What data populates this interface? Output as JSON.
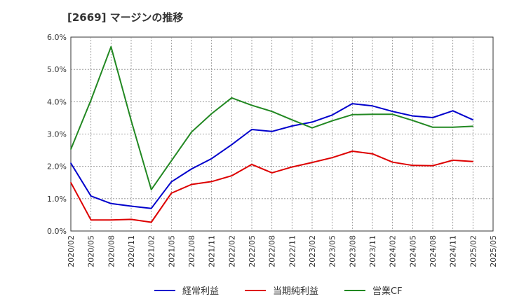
{
  "chart_data": {
    "type": "line",
    "title": "[2669]  マージンの推移",
    "xlabel": "",
    "ylabel": "",
    "ylim": [
      0,
      6
    ],
    "grid": true,
    "legend_position": "bottom",
    "x": [
      "2020/02",
      "2020/05",
      "2020/08",
      "2020/11",
      "2021/02",
      "2021/05",
      "2021/08",
      "2021/11",
      "2022/02",
      "2022/05",
      "2022/08",
      "2022/11",
      "2023/02",
      "2023/05",
      "2023/08",
      "2023/11",
      "2024/02",
      "2024/05",
      "2024/08",
      "2024/11",
      "2025/02",
      "2025/05"
    ],
    "y_ticks": [
      "0.0%",
      "1.0%",
      "2.0%",
      "3.0%",
      "4.0%",
      "5.0%",
      "6.0%"
    ],
    "series": [
      {
        "name": "経常利益",
        "color": "#0000cc",
        "values": [
          2.1,
          1.08,
          0.85,
          0.77,
          0.7,
          1.52,
          1.92,
          2.24,
          2.67,
          3.14,
          3.08,
          3.25,
          3.37,
          3.59,
          3.94,
          3.87,
          3.7,
          3.56,
          3.51,
          3.72,
          3.44,
          null
        ]
      },
      {
        "name": "当期純利益",
        "color": "#dd0000",
        "values": [
          1.5,
          0.34,
          0.34,
          0.36,
          0.27,
          1.17,
          1.44,
          1.53,
          1.71,
          2.06,
          1.8,
          1.98,
          2.12,
          2.27,
          2.47,
          2.39,
          2.13,
          2.03,
          2.02,
          2.19,
          2.15,
          null
        ]
      },
      {
        "name": "営業CF",
        "color": "#228822",
        "values": [
          2.53,
          4.05,
          5.7,
          3.42,
          1.28,
          2.17,
          3.06,
          3.63,
          4.12,
          3.89,
          3.7,
          3.44,
          3.19,
          3.41,
          3.6,
          3.61,
          3.61,
          3.42,
          3.21,
          3.21,
          3.24,
          null
        ]
      }
    ]
  }
}
